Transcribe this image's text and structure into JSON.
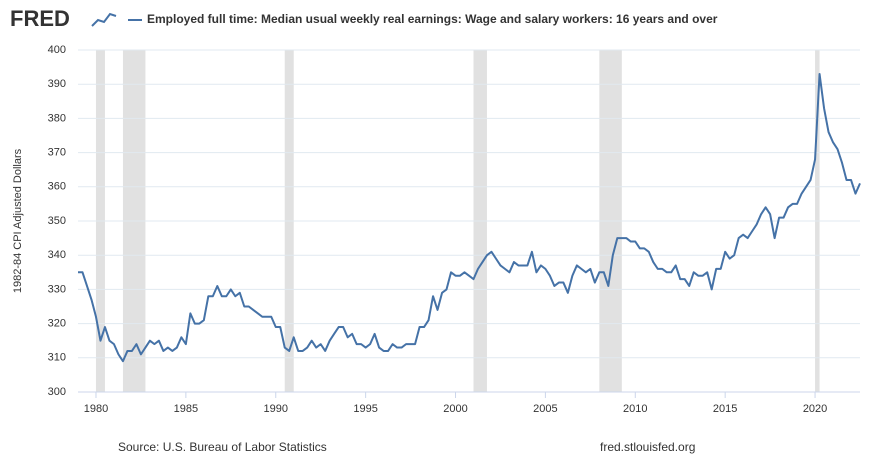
{
  "chart_data": {
    "type": "line",
    "logo": "FRED",
    "y_label": "1982-84 CPI Adjusted Dollars",
    "source": "Source: U.S. Bureau of Labor Statistics",
    "site": "fred.stlouisfed.org",
    "xlim": [
      1979,
      2022.5
    ],
    "ylim": [
      300,
      400
    ],
    "xticks": [
      1980,
      1985,
      1990,
      1995,
      2000,
      2005,
      2010,
      2015,
      2020
    ],
    "yticks": [
      300,
      310,
      320,
      330,
      340,
      350,
      360,
      370,
      380,
      390,
      400
    ],
    "grid": true,
    "recessions": [
      [
        1980,
        1980.5
      ],
      [
        1981.5,
        1982.75
      ],
      [
        1990.5,
        1991
      ],
      [
        2001,
        2001.75
      ],
      [
        2008,
        2009.25
      ],
      [
        2020,
        2020.25
      ]
    ],
    "recession_color": "#e1e1e1",
    "x": [
      1979,
      1979.25,
      1979.5,
      1979.75,
      1980,
      1980.25,
      1980.5,
      1980.75,
      1981,
      1981.25,
      1981.5,
      1981.75,
      1982,
      1982.25,
      1982.5,
      1982.75,
      1983,
      1983.25,
      1983.5,
      1983.75,
      1984,
      1984.25,
      1984.5,
      1984.75,
      1985,
      1985.25,
      1985.5,
      1985.75,
      1986,
      1986.25,
      1986.5,
      1986.75,
      1987,
      1987.25,
      1987.5,
      1987.75,
      1988,
      1988.25,
      1988.5,
      1988.75,
      1989,
      1989.25,
      1989.5,
      1989.75,
      1990,
      1990.25,
      1990.5,
      1990.75,
      1991,
      1991.25,
      1991.5,
      1991.75,
      1992,
      1992.25,
      1992.5,
      1992.75,
      1993,
      1993.25,
      1993.5,
      1993.75,
      1994,
      1994.25,
      1994.5,
      1994.75,
      1995,
      1995.25,
      1995.5,
      1995.75,
      1996,
      1996.25,
      1996.5,
      1996.75,
      1997,
      1997.25,
      1997.5,
      1997.75,
      1998,
      1998.25,
      1998.5,
      1998.75,
      1999,
      1999.25,
      1999.5,
      1999.75,
      2000,
      2000.25,
      2000.5,
      2000.75,
      2001,
      2001.25,
      2001.5,
      2001.75,
      2002,
      2002.25,
      2002.5,
      2002.75,
      2003,
      2003.25,
      2003.5,
      2003.75,
      2004,
      2004.25,
      2004.5,
      2004.75,
      2005,
      2005.25,
      2005.5,
      2005.75,
      2006,
      2006.25,
      2006.5,
      2006.75,
      2007,
      2007.25,
      2007.5,
      2007.75,
      2008,
      2008.25,
      2008.5,
      2008.75,
      2009,
      2009.25,
      2009.5,
      2009.75,
      2010,
      2010.25,
      2010.5,
      2010.75,
      2011,
      2011.25,
      2011.5,
      2011.75,
      2012,
      2012.25,
      2012.5,
      2012.75,
      2013,
      2013.25,
      2013.5,
      2013.75,
      2014,
      2014.25,
      2014.5,
      2014.75,
      2015,
      2015.25,
      2015.5,
      2015.75,
      2016,
      2016.25,
      2016.5,
      2016.75,
      2017,
      2017.25,
      2017.5,
      2017.75,
      2018,
      2018.25,
      2018.5,
      2018.75,
      2019,
      2019.25,
      2019.5,
      2019.75,
      2020,
      2020.25,
      2020.5,
      2020.75,
      2021,
      2021.25,
      2021.5,
      2021.75,
      2022,
      2022.25,
      2022.5
    ],
    "series": [
      {
        "name": "Employed full time: Median usual weekly real earnings: Wage and salary workers: 16 years and over",
        "color": "#4572a7",
        "values": [
          335,
          335,
          331,
          327,
          322,
          315,
          319,
          315,
          314,
          311,
          309,
          312,
          312,
          314,
          311,
          313,
          315,
          314,
          315,
          312,
          313,
          312,
          313,
          316,
          314,
          323,
          320,
          320,
          321,
          328,
          328,
          331,
          328,
          328,
          330,
          328,
          329,
          325,
          325,
          324,
          323,
          322,
          322,
          322,
          319,
          319,
          313,
          312,
          316,
          312,
          312,
          313,
          315,
          313,
          314,
          312,
          315,
          317,
          319,
          319,
          316,
          317,
          314,
          314,
          313,
          314,
          317,
          313,
          312,
          312,
          314,
          313,
          313,
          314,
          314,
          314,
          319,
          319,
          321,
          328,
          324,
          329,
          330,
          335,
          334,
          334,
          335,
          334,
          333,
          336,
          338,
          340,
          341,
          339,
          337,
          336,
          335,
          338,
          337,
          337,
          337,
          341,
          335,
          337,
          336,
          334,
          331,
          332,
          332,
          329,
          334,
          337,
          336,
          335,
          336,
          332,
          335,
          335,
          331,
          340,
          345,
          345,
          345,
          344,
          344,
          342,
          342,
          341,
          338,
          336,
          336,
          335,
          335,
          337,
          333,
          333,
          331,
          335,
          334,
          334,
          335,
          330,
          336,
          336,
          341,
          339,
          340,
          345,
          346,
          345,
          347,
          349,
          352,
          354,
          352,
          345,
          351,
          351,
          354,
          355,
          355,
          358,
          360,
          362,
          368,
          393,
          383,
          376,
          373,
          371,
          367,
          362,
          362,
          358,
          361
        ]
      }
    ]
  }
}
